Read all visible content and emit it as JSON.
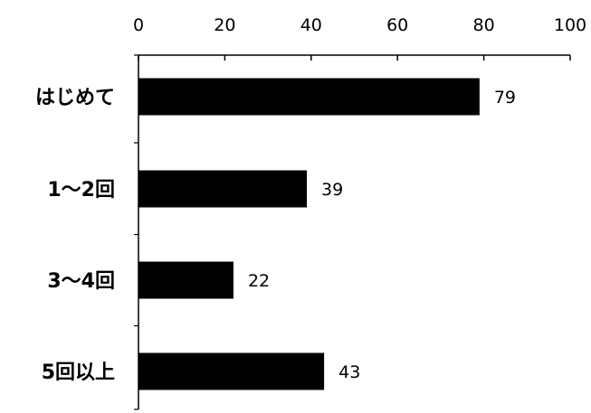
{
  "chart_data": {
    "type": "bar",
    "orientation": "horizontal",
    "axis_position": "top",
    "categories": [
      "はじめて",
      "1～2回",
      "3～4回",
      "5回以上"
    ],
    "values": [
      79,
      39,
      22,
      43
    ],
    "tick_labels": [
      "0",
      "20",
      "40",
      "60",
      "80",
      "100"
    ],
    "value_labels": [
      "79",
      "39",
      "22",
      "43"
    ],
    "xlim": [
      0,
      100
    ],
    "grid": false,
    "legend": "none",
    "bar_color": "#000000"
  }
}
